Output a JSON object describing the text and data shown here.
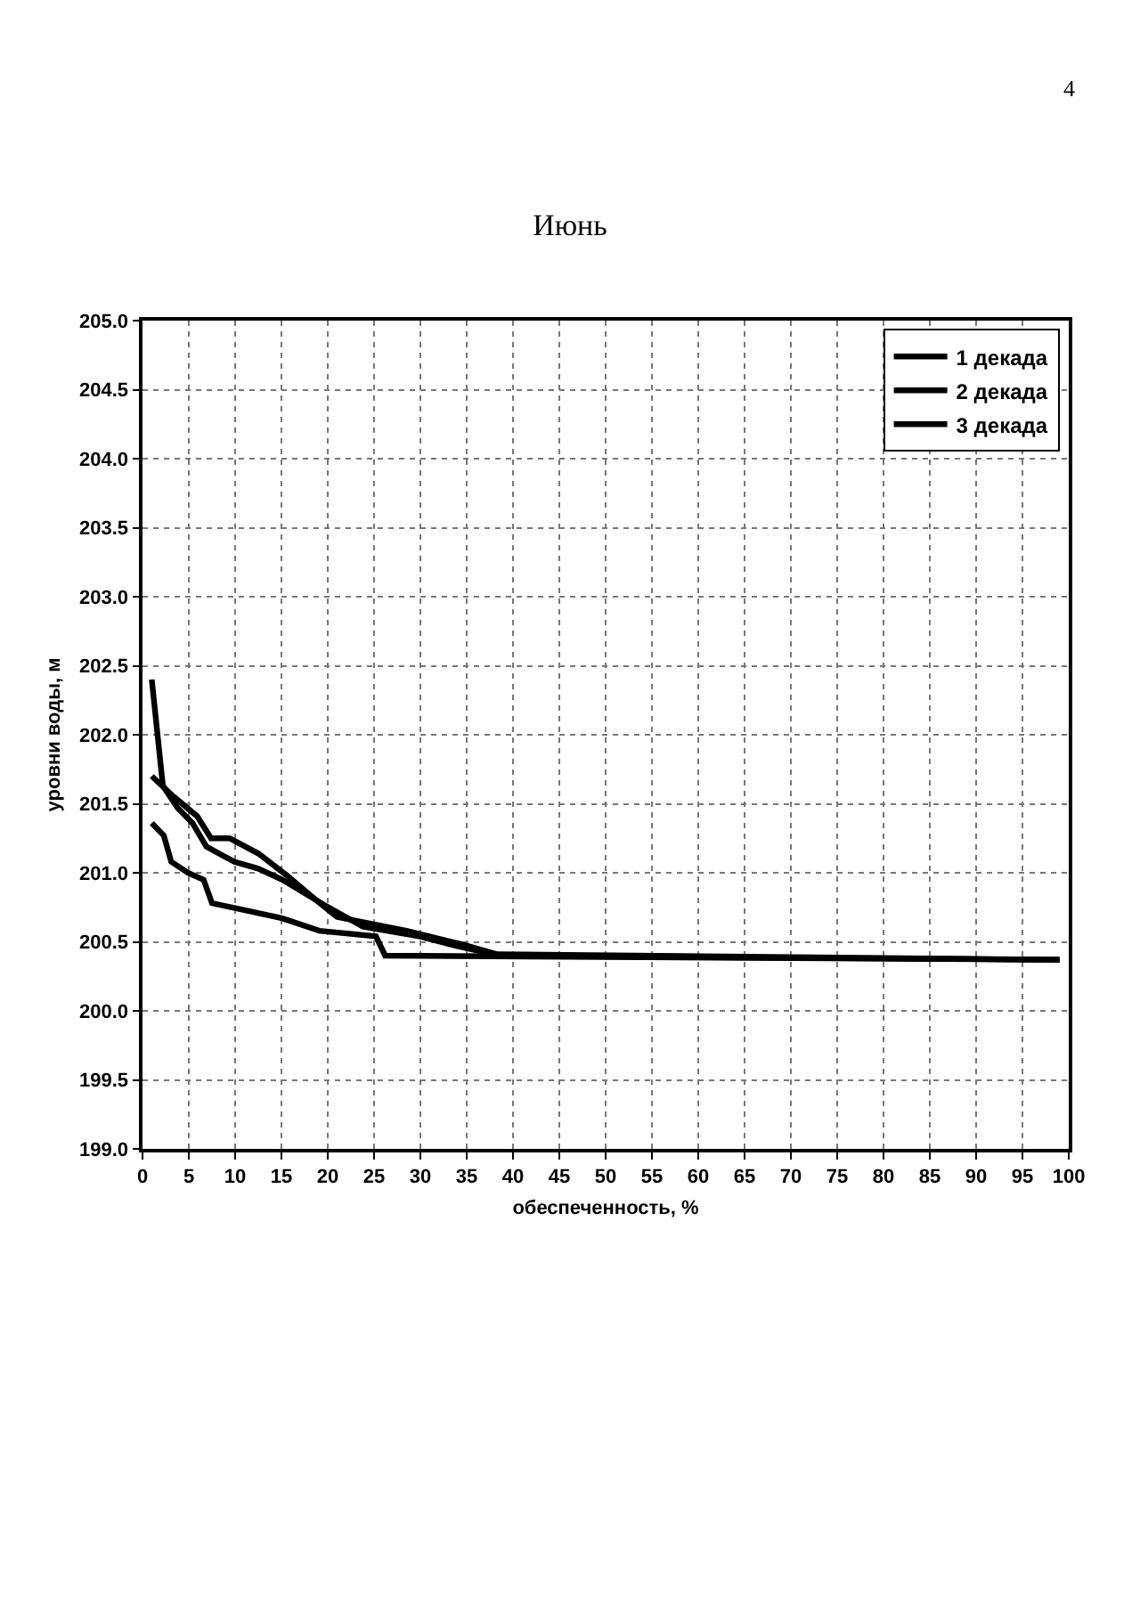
{
  "chart_data": {
    "type": "line",
    "title": "Июнь",
    "xlabel": "обеспеченность, %",
    "ylabel": "уровни воды, м",
    "annotations": [
      "4"
    ],
    "series": [
      {
        "name": "1 декада",
        "color": "#000000",
        "x": [
          1,
          2.2,
          3.8,
          5.4,
          6.9,
          9.9,
          12.5,
          15.1,
          19.8,
          23.8,
          29.9,
          33.9,
          38.6,
          99
        ],
        "values": [
          202.4,
          201.63,
          201.47,
          201.36,
          201.19,
          201.08,
          201.03,
          200.95,
          200.76,
          200.61,
          200.54,
          200.47,
          200.4,
          200.37
        ]
      },
      {
        "name": "2 декада",
        "color": "#000000",
        "x": [
          1,
          3.4,
          5.9,
          7.4,
          9.4,
          12.5,
          15.6,
          18.6,
          21,
          28.5,
          34.6,
          38.3,
          99
        ],
        "values": [
          201.7,
          201.55,
          201.41,
          201.25,
          201.25,
          201.14,
          200.98,
          200.81,
          200.68,
          200.58,
          200.48,
          200.41,
          200.37
        ]
      },
      {
        "name": "3 декада",
        "color": "#000000",
        "x": [
          1,
          2.3,
          3.1,
          4.9,
          6.6,
          7.5,
          11,
          15.1,
          19.1,
          25.2,
          26.2,
          99
        ],
        "values": [
          201.36,
          201.27,
          201.08,
          201.0,
          200.95,
          200.78,
          200.73,
          200.67,
          200.58,
          200.54,
          200.4,
          200.37
        ]
      }
    ],
    "xlim": [
      0,
      100
    ],
    "xticks": [
      0,
      5,
      10,
      15,
      20,
      25,
      30,
      35,
      40,
      45,
      50,
      55,
      60,
      65,
      70,
      75,
      80,
      85,
      90,
      95,
      100
    ],
    "ylim": [
      199,
      205
    ],
    "yticks": [
      {
        "value": 199,
        "label": "199.0"
      },
      {
        "value": 199.5,
        "label": "199.5"
      },
      {
        "value": 200,
        "label": "200.0"
      },
      {
        "value": 200.5,
        "label": "200.5"
      },
      {
        "value": 201,
        "label": "201.0"
      },
      {
        "value": 201.5,
        "label": "201.5"
      },
      {
        "value": 202,
        "label": "202.0"
      },
      {
        "value": 202.5,
        "label": "202.5"
      },
      {
        "value": 203,
        "label": "203.0"
      },
      {
        "value": 203.5,
        "label": "203.5"
      },
      {
        "value": 204,
        "label": "204.0"
      },
      {
        "value": 204.5,
        "label": "204.5"
      },
      {
        "value": 205,
        "label": "205.0"
      }
    ],
    "grid": true,
    "legend": "top right",
    "line_style": "solid",
    "marker": "none"
  }
}
